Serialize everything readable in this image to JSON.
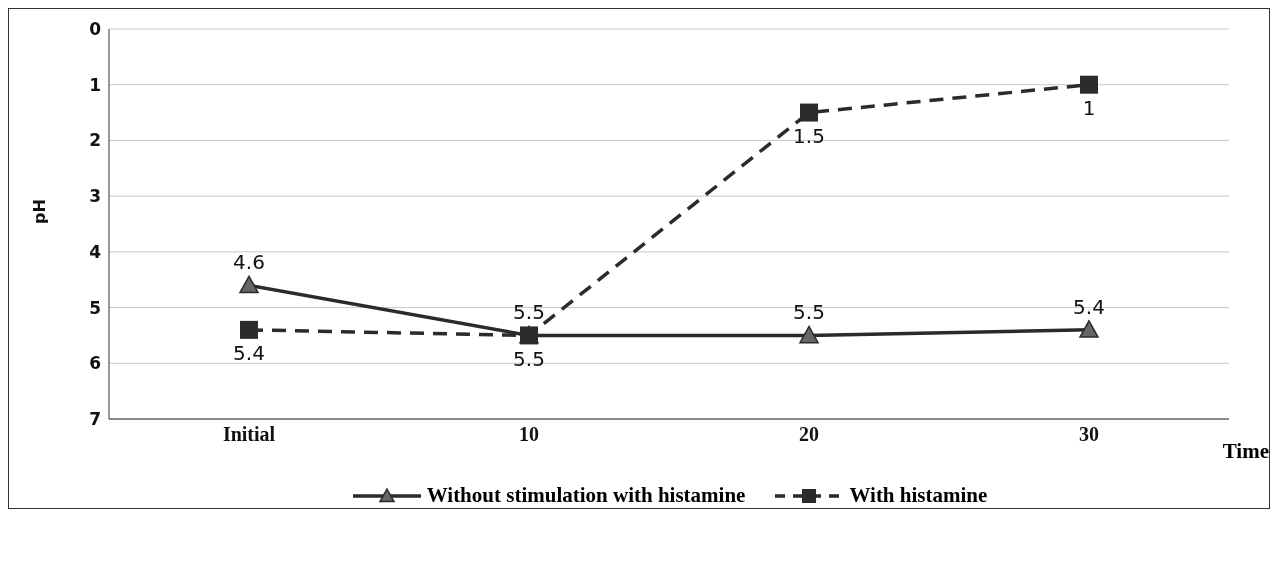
{
  "chart_data": {
    "type": "line",
    "xlabel": "Time",
    "ylabel": "pH",
    "categories": [
      "Initial",
      "10",
      "20",
      "30"
    ],
    "series": [
      {
        "name": "Without stimulation with histamine",
        "color": "#2b2b2b",
        "values": [
          4.6,
          5.5,
          5.5,
          5.4
        ],
        "marker": "triangle",
        "line_style": "solid"
      },
      {
        "name": "With histamine",
        "color": "#2b2b2b",
        "values": [
          5.4,
          5.5,
          1.5,
          1
        ],
        "marker": "square",
        "line_style": "dashed"
      }
    ],
    "ylim": [
      7,
      0
    ],
    "yticks": [
      0,
      1,
      2,
      3,
      4,
      5,
      6,
      7
    ],
    "grid": "y",
    "legend": "bottom",
    "data_labels": true
  }
}
